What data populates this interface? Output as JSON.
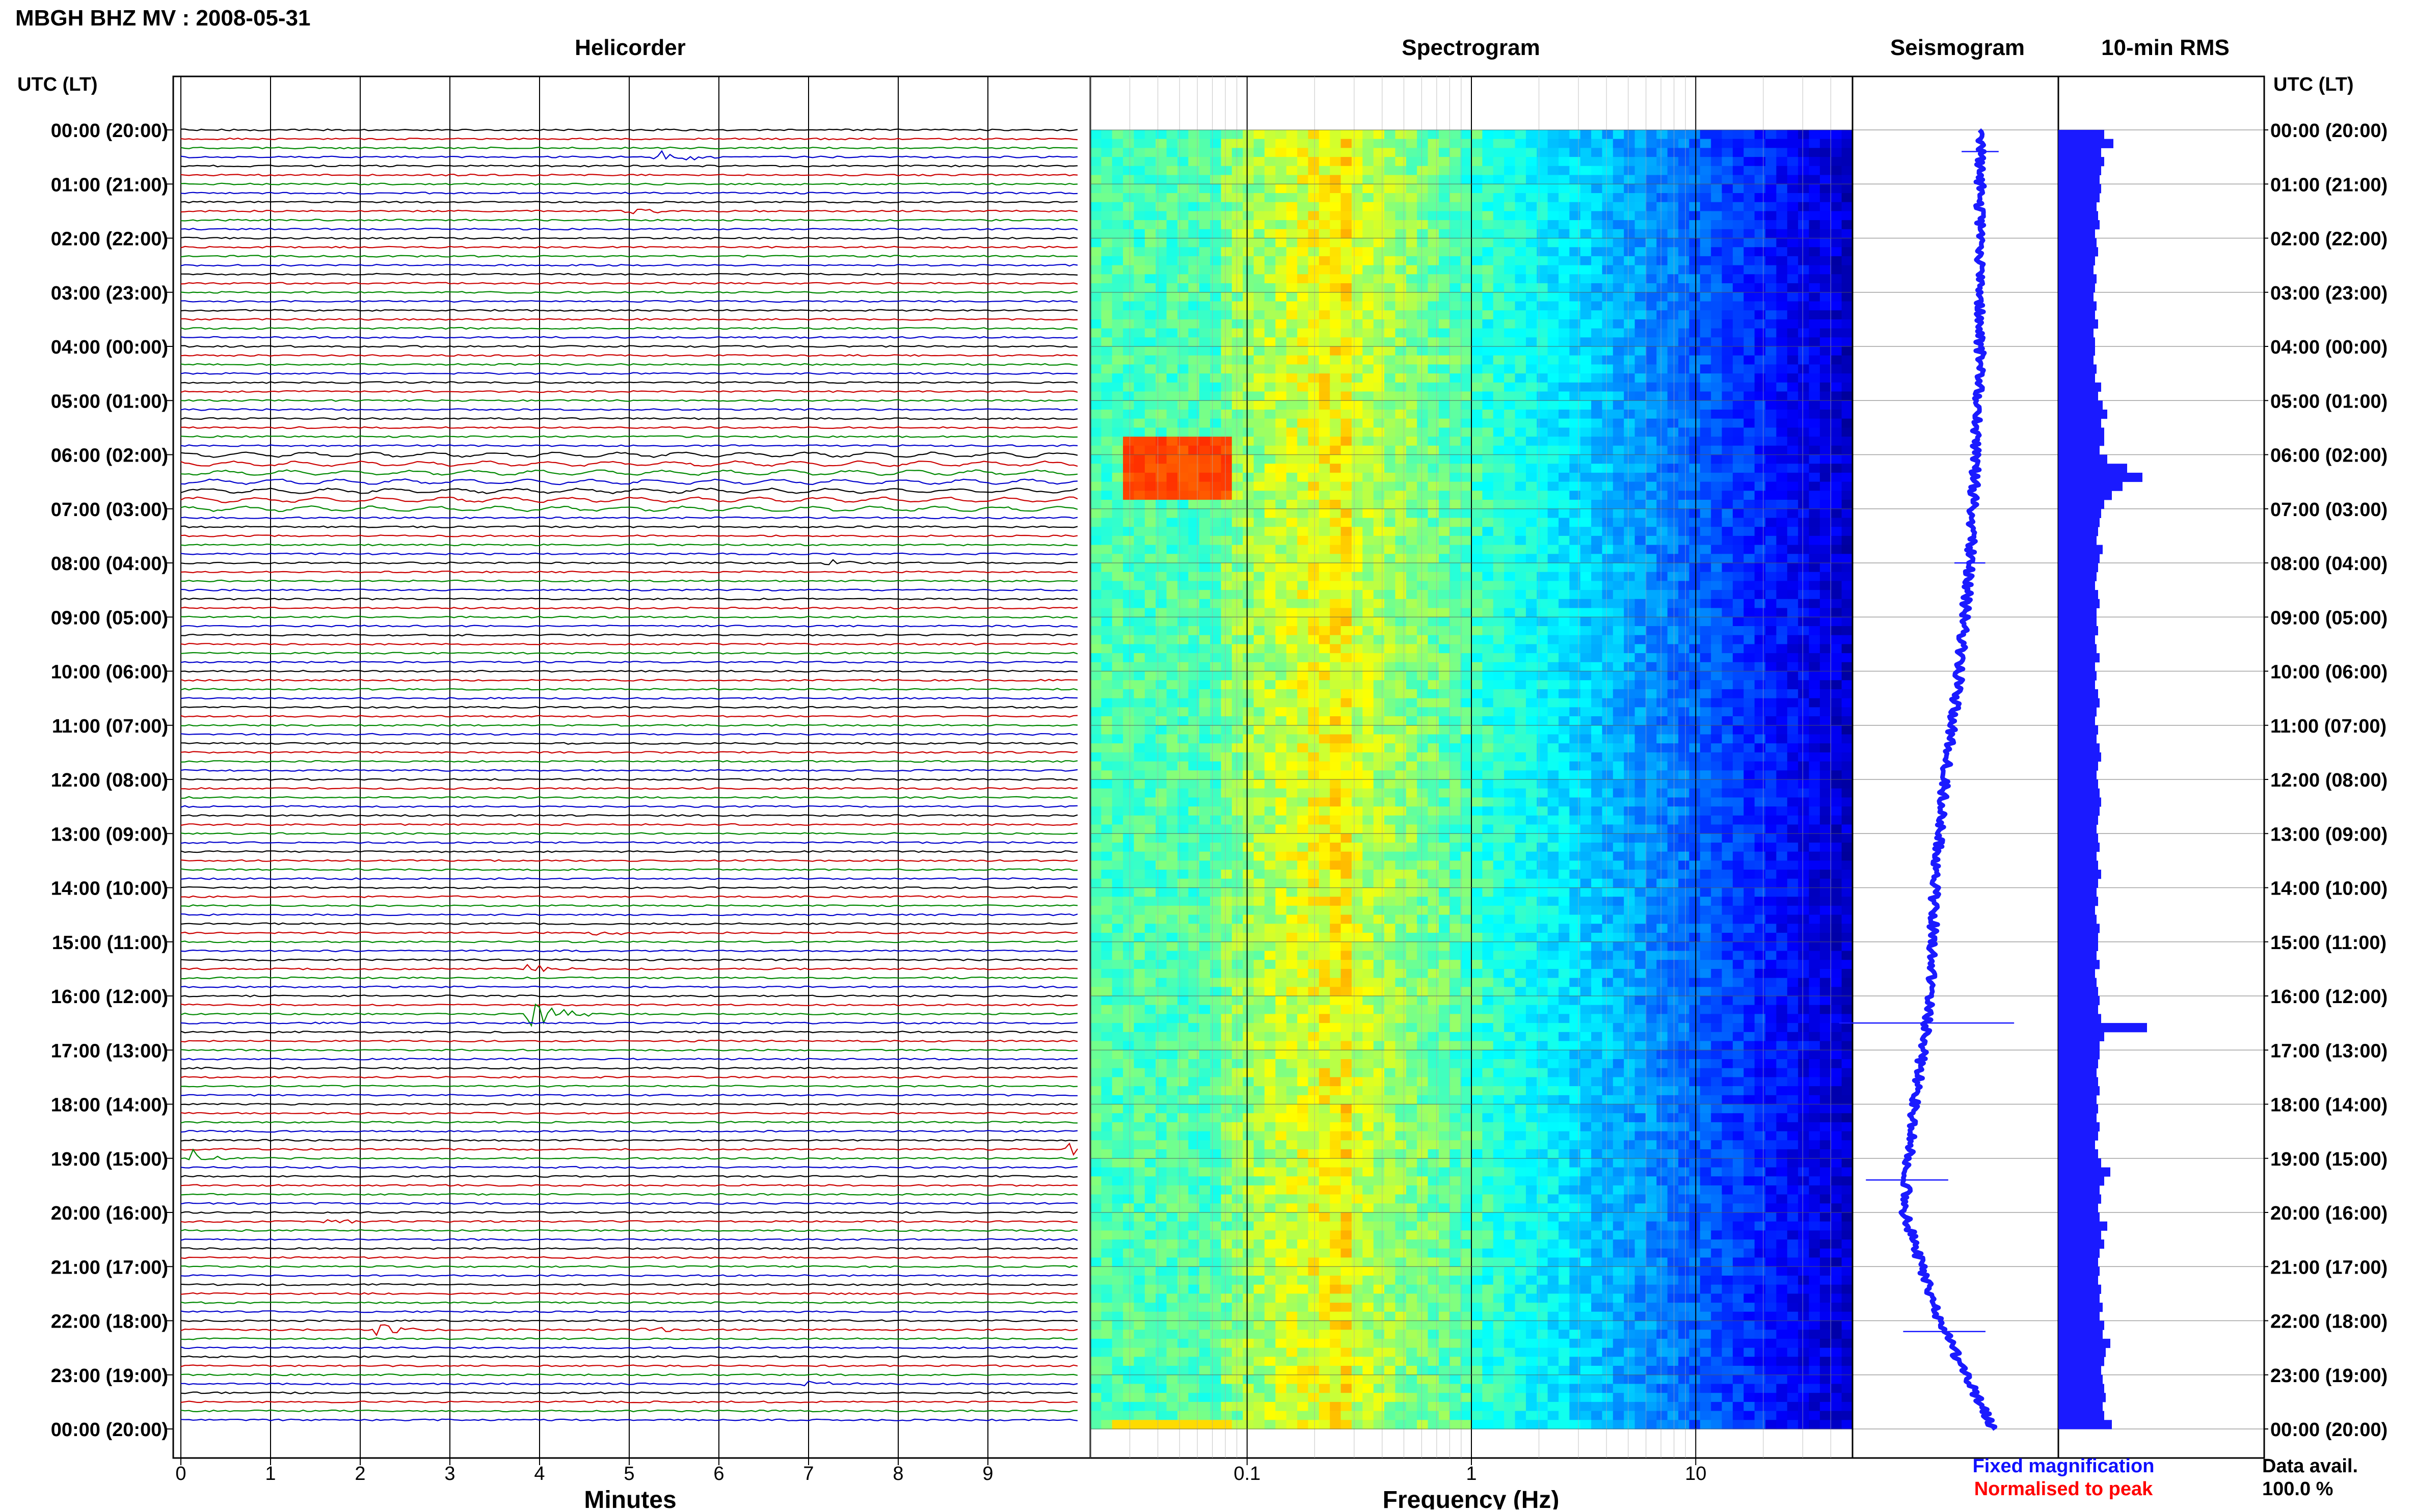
{
  "station_title": "MBGH BHZ MV : 2008-05-31",
  "time_axis_label": "UTC (LT)",
  "panels": {
    "helicorder": "Helicorder",
    "spectrogram": "Spectrogram",
    "seismogram": "Seismogram",
    "rms": "10-min RMS"
  },
  "time_labels": [
    "00:00 (20:00)",
    "01:00 (21:00)",
    "02:00 (22:00)",
    "03:00 (23:00)",
    "04:00 (00:00)",
    "05:00 (01:00)",
    "06:00 (02:00)",
    "07:00 (03:00)",
    "08:00 (04:00)",
    "09:00 (05:00)",
    "10:00 (06:00)",
    "11:00 (07:00)",
    "12:00 (08:00)",
    "13:00 (09:00)",
    "14:00 (10:00)",
    "15:00 (11:00)",
    "16:00 (12:00)",
    "17:00 (13:00)",
    "18:00 (14:00)",
    "19:00 (15:00)",
    "20:00 (16:00)",
    "21:00 (17:00)",
    "22:00 (18:00)",
    "23:00 (19:00)",
    "00:00 (20:00)"
  ],
  "minutes_axis": {
    "label": "Minutes",
    "ticks": [
      "0",
      "1",
      "2",
      "3",
      "4",
      "5",
      "6",
      "7",
      "8",
      "9"
    ]
  },
  "frequency_axis": {
    "label": "Frequency (Hz)",
    "ticks": [
      "0.1",
      "1",
      "10"
    ]
  },
  "legend": {
    "fixed": "Fixed magnification",
    "normalised": "Normalised to peak",
    "fixed_color": "#1010ff",
    "normalised_color": "#ff0000"
  },
  "data_avail": {
    "label": "Data avail.",
    "value": "100.0 %"
  },
  "colors": {
    "trace_cycle": [
      "#000000",
      "#cc0000",
      "#008800",
      "#0000cc"
    ],
    "rms_bar": "#1a1aff",
    "seismogram": "#1a1aff"
  },
  "chart_data": {
    "type": "heatmap",
    "title": "MBGH BHZ MV : 2008-05-31",
    "helicorder": {
      "rows": 144,
      "minutes_per_row": 10,
      "events": [
        {
          "row": 3,
          "minute": 5.3,
          "amp": 4
        },
        {
          "row": 9,
          "minute": 5.0,
          "amp": 1.5
        },
        {
          "row": 48,
          "minute": 7.2,
          "amp": 2
        },
        {
          "row": 89,
          "minute": 4.6,
          "amp": 1.5
        },
        {
          "row": 93,
          "minute": 3.9,
          "amp": 2
        },
        {
          "row": 98,
          "minute": 3.9,
          "amp": 7
        },
        {
          "row": 114,
          "minute": 0.1,
          "amp": 4
        },
        {
          "row": 113,
          "minute": 9.9,
          "amp": 4
        },
        {
          "row": 121,
          "minute": 1.6,
          "amp": 2
        },
        {
          "row": 133,
          "minute": 2.2,
          "amp": 3
        },
        {
          "row": 133,
          "minute": 5.1,
          "amp": 2
        },
        {
          "row": 139,
          "minute": 7.0,
          "amp": 1.5
        }
      ]
    },
    "spectrogram": {
      "freq_range_hz": [
        0.02,
        50
      ],
      "scale": "log",
      "rows": 144
    },
    "seismogram": {
      "x_hours": [
        0,
        2,
        4,
        6,
        8,
        10,
        12,
        14,
        16,
        18,
        20,
        22,
        24
      ],
      "offset": [
        0.62,
        0.62,
        0.62,
        0.6,
        0.57,
        0.52,
        0.45,
        0.4,
        0.38,
        0.3,
        0.25,
        0.42,
        0.68
      ],
      "spikes": [
        {
          "hour": 0.4,
          "width": 0.18
        },
        {
          "hour": 8.0,
          "width": 0.15
        },
        {
          "hour": 16.5,
          "width": 0.85
        },
        {
          "hour": 19.4,
          "width": 0.4
        },
        {
          "hour": 22.2,
          "width": 0.4
        }
      ]
    },
    "rms": {
      "bars_per_hour": 6,
      "values": [
        0.3,
        0.36,
        0.28,
        0.3,
        0.28,
        0.27,
        0.28,
        0.27,
        0.25,
        0.26,
        0.27,
        0.24,
        0.25,
        0.26,
        0.24,
        0.23,
        0.25,
        0.24,
        0.23,
        0.25,
        0.24,
        0.26,
        0.23,
        0.24,
        0.24,
        0.23,
        0.25,
        0.24,
        0.28,
        0.26,
        0.29,
        0.32,
        0.28,
        0.3,
        0.3,
        0.27,
        0.32,
        0.45,
        0.55,
        0.42,
        0.35,
        0.3,
        0.28,
        0.27,
        0.26,
        0.25,
        0.29,
        0.27,
        0.26,
        0.25,
        0.24,
        0.26,
        0.27,
        0.25,
        0.25,
        0.26,
        0.24,
        0.25,
        0.27,
        0.24,
        0.25,
        0.24,
        0.26,
        0.27,
        0.25,
        0.24,
        0.26,
        0.25,
        0.27,
        0.28,
        0.26,
        0.25,
        0.26,
        0.27,
        0.28,
        0.27,
        0.26,
        0.25,
        0.26,
        0.27,
        0.25,
        0.26,
        0.28,
        0.26,
        0.25,
        0.26,
        0.24,
        0.25,
        0.27,
        0.26,
        0.26,
        0.25,
        0.27,
        0.24,
        0.25,
        0.26,
        0.27,
        0.26,
        0.28,
        0.58,
        0.3,
        0.27,
        0.27,
        0.26,
        0.25,
        0.26,
        0.27,
        0.25,
        0.26,
        0.25,
        0.27,
        0.26,
        0.24,
        0.26,
        0.28,
        0.34,
        0.3,
        0.27,
        0.28,
        0.26,
        0.27,
        0.32,
        0.28,
        0.3,
        0.27,
        0.26,
        0.27,
        0.26,
        0.28,
        0.27,
        0.29,
        0.27,
        0.3,
        0.29,
        0.34,
        0.31,
        0.3,
        0.28,
        0.29,
        0.3,
        0.31,
        0.29,
        0.3,
        0.35
      ]
    }
  }
}
